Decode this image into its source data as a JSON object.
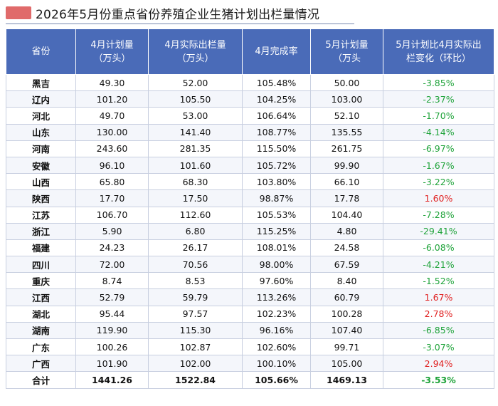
{
  "title": "2026年5月份重点省份养殖企业生猪计划出栏量情况",
  "colors": {
    "header_bg": "#4a6bb8",
    "negative": "#1fa33a",
    "positive": "#e02020",
    "title_mark": "#e06a6a"
  },
  "headers": [
    {
      "line1": "省份",
      "line2": ""
    },
    {
      "line1": "4月计划量",
      "line2": "（万头）"
    },
    {
      "line1": "4月实际出栏量",
      "line2": "（万头）"
    },
    {
      "line1": "4月完成率",
      "line2": ""
    },
    {
      "line1": "5月计划量",
      "line2": "（万头"
    },
    {
      "line1": "5月计划比4月实际出",
      "line2": "栏变化（环比）"
    }
  ],
  "rows": [
    {
      "province": "黑吉",
      "apr_plan": "49.30",
      "apr_actual": "52.00",
      "apr_rate": "105.48%",
      "may_plan": "50.00",
      "change": "-3.85%",
      "sign": "neg"
    },
    {
      "province": "辽内",
      "apr_plan": "101.20",
      "apr_actual": "105.50",
      "apr_rate": "104.25%",
      "may_plan": "103.00",
      "change": "-2.37%",
      "sign": "neg"
    },
    {
      "province": "河北",
      "apr_plan": "49.70",
      "apr_actual": "53.00",
      "apr_rate": "106.64%",
      "may_plan": "52.10",
      "change": "-1.70%",
      "sign": "neg"
    },
    {
      "province": "山东",
      "apr_plan": "130.00",
      "apr_actual": "141.40",
      "apr_rate": "108.77%",
      "may_plan": "135.55",
      "change": "-4.14%",
      "sign": "neg"
    },
    {
      "province": "河南",
      "apr_plan": "243.60",
      "apr_actual": "281.35",
      "apr_rate": "115.50%",
      "may_plan": "261.75",
      "change": "-6.97%",
      "sign": "neg"
    },
    {
      "province": "安徽",
      "apr_plan": "96.10",
      "apr_actual": "101.60",
      "apr_rate": "105.72%",
      "may_plan": "99.90",
      "change": "-1.67%",
      "sign": "neg"
    },
    {
      "province": "山西",
      "apr_plan": "65.80",
      "apr_actual": "68.30",
      "apr_rate": "103.80%",
      "may_plan": "66.10",
      "change": "-3.22%",
      "sign": "neg"
    },
    {
      "province": "陕西",
      "apr_plan": "17.70",
      "apr_actual": "17.50",
      "apr_rate": "98.87%",
      "may_plan": "17.78",
      "change": "1.60%",
      "sign": "pos"
    },
    {
      "province": "江苏",
      "apr_plan": "106.70",
      "apr_actual": "112.60",
      "apr_rate": "105.53%",
      "may_plan": "104.40",
      "change": "-7.28%",
      "sign": "neg"
    },
    {
      "province": "浙江",
      "apr_plan": "5.90",
      "apr_actual": "6.80",
      "apr_rate": "115.25%",
      "may_plan": "4.80",
      "change": "-29.41%",
      "sign": "neg"
    },
    {
      "province": "福建",
      "apr_plan": "24.23",
      "apr_actual": "26.17",
      "apr_rate": "108.01%",
      "may_plan": "24.58",
      "change": "-6.08%",
      "sign": "neg"
    },
    {
      "province": "四川",
      "apr_plan": "72.00",
      "apr_actual": "70.56",
      "apr_rate": "98.00%",
      "may_plan": "67.59",
      "change": "-4.21%",
      "sign": "neg"
    },
    {
      "province": "重庆",
      "apr_plan": "8.74",
      "apr_actual": "8.53",
      "apr_rate": "97.60%",
      "may_plan": "8.40",
      "change": "-1.52%",
      "sign": "neg"
    },
    {
      "province": "江西",
      "apr_plan": "52.79",
      "apr_actual": "59.79",
      "apr_rate": "113.26%",
      "may_plan": "60.79",
      "change": "1.67%",
      "sign": "pos"
    },
    {
      "province": "湖北",
      "apr_plan": "95.44",
      "apr_actual": "97.57",
      "apr_rate": "102.23%",
      "may_plan": "100.28",
      "change": "2.78%",
      "sign": "pos"
    },
    {
      "province": "湖南",
      "apr_plan": "119.90",
      "apr_actual": "115.30",
      "apr_rate": "96.16%",
      "may_plan": "107.40",
      "change": "-6.85%",
      "sign": "neg"
    },
    {
      "province": "广东",
      "apr_plan": "100.26",
      "apr_actual": "102.87",
      "apr_rate": "102.60%",
      "may_plan": "99.71",
      "change": "-3.07%",
      "sign": "neg"
    },
    {
      "province": "广西",
      "apr_plan": "101.90",
      "apr_actual": "102.00",
      "apr_rate": "100.10%",
      "may_plan": "105.00",
      "change": "2.94%",
      "sign": "pos"
    },
    {
      "province": "合计",
      "apr_plan": "1441.26",
      "apr_actual": "1522.84",
      "apr_rate": "105.66%",
      "may_plan": "1469.13",
      "change": "-3.53%",
      "sign": "neg"
    }
  ]
}
